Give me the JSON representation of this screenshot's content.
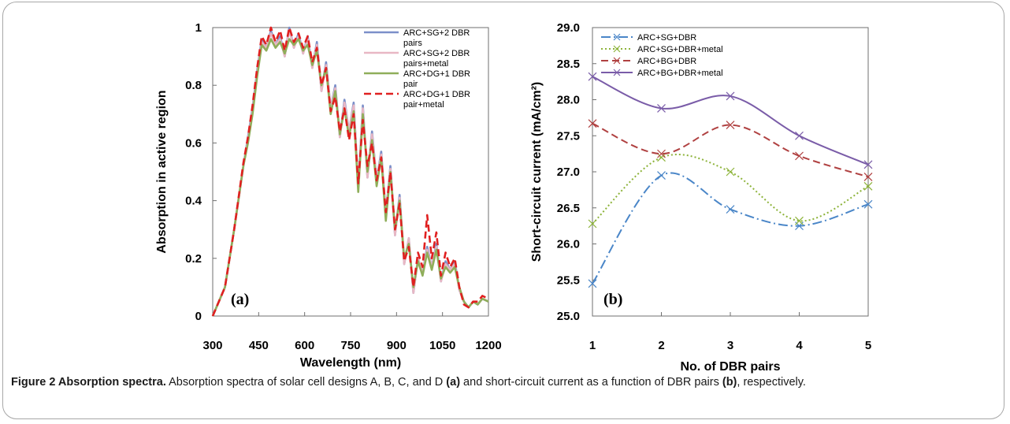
{
  "caption": {
    "label": "Figure 2 Absorption spectra.",
    "text_1": " Absorption spectra of solar cell designs A, B, C, and D ",
    "ref_a": "(a)",
    "text_2": " and short-circuit current as a function of DBR pairs ",
    "ref_b": "(b)",
    "text_3": ", respectively."
  },
  "chart_data": [
    {
      "type": "line",
      "panel_label": "(a)",
      "xlabel": "Wavelength (nm)",
      "ylabel": "Absorption in active region",
      "xlim": [
        300,
        1200
      ],
      "ylim": [
        0,
        1
      ],
      "x_ticks": [
        "300",
        "450",
        "600",
        "750",
        "900",
        "1050",
        "1200"
      ],
      "y_ticks": [
        "0",
        "0.2",
        "0.4",
        "0.6",
        "0.8",
        "1"
      ],
      "grid": false,
      "legend_position": "top-right",
      "x": [
        300,
        340,
        370,
        400,
        415,
        430,
        445,
        460,
        475,
        490,
        505,
        520,
        535,
        550,
        565,
        580,
        595,
        610,
        625,
        640,
        655,
        670,
        685,
        700,
        715,
        730,
        745,
        760,
        775,
        790,
        805,
        820,
        835,
        850,
        865,
        880,
        895,
        910,
        925,
        940,
        955,
        970,
        985,
        1000,
        1015,
        1030,
        1045,
        1060,
        1075,
        1090,
        1105,
        1120,
        1135,
        1150,
        1165,
        1180,
        1200
      ],
      "series": [
        {
          "name": "ARC+SG+2 DBR pairs",
          "color": "#7b8fc9",
          "dash": "solid",
          "values": [
            0,
            0.1,
            0.3,
            0.52,
            0.62,
            0.72,
            0.85,
            0.96,
            0.93,
            0.99,
            0.94,
            0.97,
            0.9,
            1.0,
            0.93,
            0.98,
            0.91,
            0.97,
            0.86,
            0.95,
            0.78,
            0.88,
            0.72,
            0.8,
            0.62,
            0.75,
            0.64,
            0.74,
            0.45,
            0.73,
            0.48,
            0.64,
            0.47,
            0.57,
            0.35,
            0.52,
            0.28,
            0.42,
            0.18,
            0.27,
            0.08,
            0.2,
            0.15,
            0.24,
            0.17,
            0.25,
            0.12,
            0.19,
            0.16,
            0.19,
            0.09,
            0.05,
            0.03,
            0.05,
            0.04,
            0.06,
            0.05
          ]
        },
        {
          "name": "ARC+SG+2 DBR pairs+metal",
          "color": "#e8b7c4",
          "dash": "solid",
          "values": [
            0,
            0.1,
            0.3,
            0.52,
            0.61,
            0.71,
            0.84,
            0.95,
            0.93,
            0.98,
            0.94,
            0.96,
            0.9,
            0.99,
            0.93,
            0.97,
            0.91,
            0.96,
            0.86,
            0.94,
            0.78,
            0.87,
            0.72,
            0.79,
            0.62,
            0.74,
            0.64,
            0.73,
            0.45,
            0.72,
            0.48,
            0.63,
            0.47,
            0.56,
            0.35,
            0.51,
            0.28,
            0.41,
            0.18,
            0.27,
            0.08,
            0.2,
            0.15,
            0.23,
            0.17,
            0.24,
            0.12,
            0.18,
            0.16,
            0.18,
            0.09,
            0.05,
            0.03,
            0.05,
            0.04,
            0.06,
            0.05
          ]
        },
        {
          "name": "ARC+DG+1 DBR pair",
          "color": "#8fae5a",
          "dash": "solid",
          "values": [
            0,
            0.1,
            0.3,
            0.52,
            0.6,
            0.7,
            0.83,
            0.94,
            0.92,
            0.96,
            0.93,
            0.95,
            0.91,
            0.96,
            0.94,
            0.96,
            0.92,
            0.94,
            0.87,
            0.92,
            0.8,
            0.86,
            0.7,
            0.78,
            0.63,
            0.72,
            0.62,
            0.71,
            0.43,
            0.7,
            0.5,
            0.61,
            0.45,
            0.55,
            0.33,
            0.5,
            0.3,
            0.4,
            0.2,
            0.25,
            0.1,
            0.19,
            0.14,
            0.22,
            0.16,
            0.23,
            0.13,
            0.17,
            0.15,
            0.17,
            0.1,
            0.05,
            0.03,
            0.05,
            0.04,
            0.06,
            0.05
          ]
        },
        {
          "name": "ARC+DG+1 DBR pair+metal",
          "color": "#e02020",
          "dash": "dash",
          "values": [
            0,
            0.1,
            0.3,
            0.53,
            0.62,
            0.73,
            0.86,
            0.97,
            0.94,
            1.0,
            0.95,
            0.99,
            0.92,
            1.0,
            0.95,
            0.98,
            0.93,
            0.97,
            0.88,
            0.93,
            0.8,
            0.86,
            0.71,
            0.76,
            0.64,
            0.72,
            0.61,
            0.7,
            0.46,
            0.68,
            0.52,
            0.6,
            0.47,
            0.55,
            0.36,
            0.5,
            0.3,
            0.39,
            0.19,
            0.24,
            0.1,
            0.22,
            0.17,
            0.35,
            0.2,
            0.29,
            0.14,
            0.22,
            0.17,
            0.2,
            0.1,
            0.04,
            0.03,
            0.05,
            0.05,
            0.07,
            0.06
          ]
        }
      ]
    },
    {
      "type": "line",
      "panel_label": "(b)",
      "xlabel": "No. of DBR pairs",
      "ylabel": "Short-circuit current (mA/cm²)",
      "xlim": [
        1,
        5
      ],
      "ylim": [
        25.0,
        29.0
      ],
      "x_ticks": [
        "1",
        "2",
        "3",
        "4",
        "5"
      ],
      "y_ticks": [
        "25.0",
        "25.5",
        "26.0",
        "26.5",
        "27.0",
        "27.5",
        "28.0",
        "28.5",
        "29.0"
      ],
      "grid": false,
      "legend_position": "top-left",
      "x": [
        1,
        2,
        3,
        4,
        5
      ],
      "series": [
        {
          "name": "ARC+SG+DBR",
          "color": "#4a86c8",
          "dash": "dashdot",
          "values": [
            25.45,
            26.95,
            26.48,
            26.25,
            26.55
          ]
        },
        {
          "name": "ARC+SG+DBR+metal",
          "color": "#8db33a",
          "dash": "dot",
          "values": [
            26.28,
            27.2,
            27.0,
            26.32,
            26.8
          ]
        },
        {
          "name": "ARC+BG+DBR",
          "color": "#b04141",
          "dash": "dash",
          "values": [
            27.67,
            27.25,
            27.65,
            27.22,
            26.93
          ]
        },
        {
          "name": "ARC+BG+DBR+metal",
          "color": "#7a5ca8",
          "dash": "solid",
          "values": [
            28.32,
            27.88,
            28.05,
            27.5,
            27.1
          ]
        }
      ]
    }
  ]
}
